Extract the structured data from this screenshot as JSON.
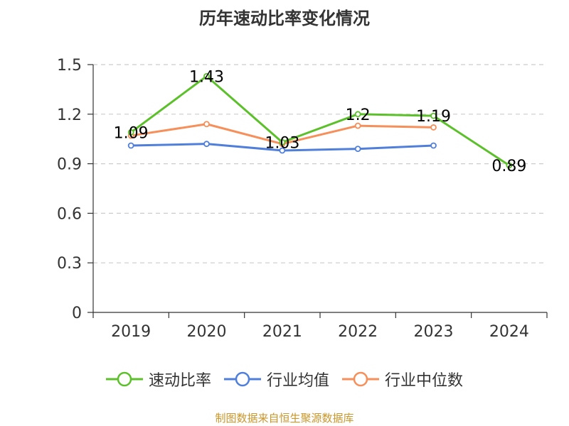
{
  "title": "历年速动比率变化情况",
  "source": "制图数据来自恒生聚源数据库",
  "colors": {
    "series_green": "#5cc02b",
    "series_blue": "#4f7fdb",
    "series_orange": "#f68f5a",
    "axis": "#333333",
    "grid": "#cccccc",
    "label": "#000000"
  },
  "chart_data": {
    "type": "line",
    "title": "历年速动比率变化情况",
    "xlabel": "",
    "ylabel": "",
    "categories": [
      "2019",
      "2020",
      "2021",
      "2022",
      "2023",
      "2024"
    ],
    "ylim": [
      0,
      1.5
    ],
    "yticks": [
      0,
      0.3,
      0.6,
      0.9,
      1.2,
      1.5
    ],
    "ytick_labels": [
      "0",
      "0.3",
      "0.6",
      "0.9",
      "1.2",
      "1.5"
    ],
    "grid": true,
    "legend_position": "bottom",
    "series": [
      {
        "name": "速动比率",
        "color": "#5cc02b",
        "values": [
          1.09,
          1.43,
          1.03,
          1.2,
          1.19,
          0.89
        ],
        "data_labels": [
          "1.09",
          "1.43",
          "1.03",
          "1.2",
          "1.19",
          "0.89"
        ]
      },
      {
        "name": "行业均值",
        "color": "#4f7fdb",
        "values": [
          1.01,
          1.02,
          0.98,
          0.99,
          1.01,
          null
        ]
      },
      {
        "name": "行业中位数",
        "color": "#f68f5a",
        "values": [
          1.07,
          1.14,
          1.02,
          1.13,
          1.12,
          null
        ]
      }
    ]
  }
}
